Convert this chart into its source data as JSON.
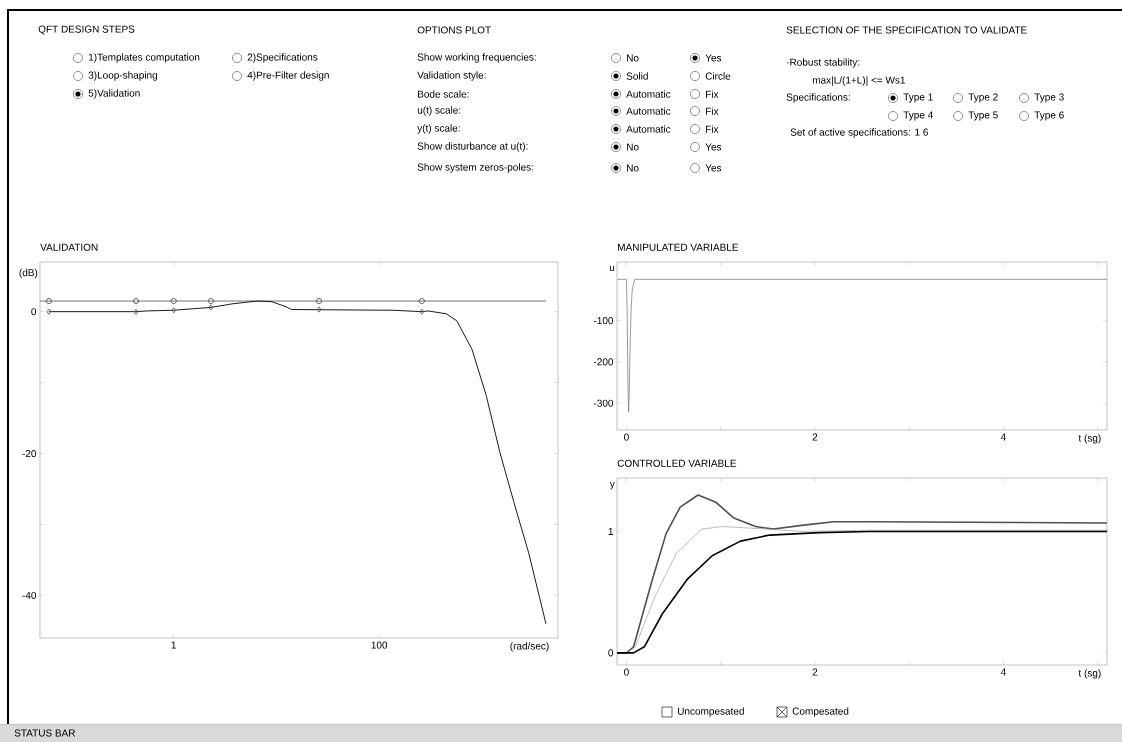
{
  "chart_data": [
    {
      "type": "other",
      "annotations": [
        "QFT DESIGN STEPS",
        "1)Templates computation",
        "2)Specifications",
        "3)Loop-shaping",
        "4)Pre-Filter design",
        "5)Validation",
        "OPTIONS PLOT",
        "Show working frequencies:",
        "Validation style:",
        "Bode scale:",
        "u(t) scale:",
        "y(t) scale:",
        "Show disturbance at u(t):",
        "Show system zeros-poles:",
        "No",
        "Yes",
        "Solid",
        "Circle",
        "Automatic",
        "Fix",
        "Automatic",
        "Fix",
        "Automatic",
        "Fix",
        "No",
        "Yes",
        "No",
        "Yes",
        "SELECTION OF THE SPECIFICATION TO VALIDATE",
        "·Robust stability:",
        "max|L/(1+L)| <= Ws1",
        "Specifications:",
        "Type 1",
        "Type 2",
        "Type 3",
        "Type 4",
        "Type 5",
        "Type 6",
        "Set of active specifications: 1 6",
        "Uncompesated",
        "Compesated",
        "STATUS BAR"
      ]
    },
    {
      "type": "line",
      "title": "VALIDATION",
      "xlabel": "(rad/sec)",
      "ylabel": "(dB)",
      "log": "x",
      "xlim": [
        0.05,
        5500
      ],
      "ylim": [
        -46,
        7
      ],
      "xticks": [
        1,
        100
      ],
      "yticks": [
        0,
        {
          "value": -10,
          "label": null
        },
        -20,
        {
          "value": -30,
          "label": null
        },
        -40
      ],
      "series": [
        {
          "type": "line",
          "color": "#505050",
          "x": [
            0.05,
            4200
          ],
          "values": [
            1.5,
            1.5
          ]
        },
        {
          "type": "scatter",
          "marker": "circle",
          "color": "#505050",
          "x": [
            0.061,
            0.43,
            1.0,
            2.3,
            26,
            260
          ],
          "values": [
            1.5,
            1.5,
            1.5,
            1.5,
            1.5,
            1.5
          ]
        },
        {
          "type": "line",
          "color": "#000000",
          "x": [
            0.061,
            0.43,
            0.55,
            1.0,
            2.3,
            3.7,
            6.5,
            9.0,
            12.4,
            14,
            136,
            260,
            300,
            450,
            570,
            800,
            1100,
            1500,
            2050,
            2850,
            4200
          ],
          "values": [
            0,
            0,
            0.1,
            0.2,
            0.6,
            1.1,
            1.5,
            1.4,
            0.7,
            0.3,
            0.2,
            0,
            0.1,
            -0.3,
            -1.3,
            -5.3,
            -11.8,
            -19.9,
            -26.9,
            -34,
            -44
          ]
        },
        {
          "type": "scatter",
          "marker": "diamond",
          "color": "#606060",
          "x": [
            0.061,
            0.43,
            1.0,
            2.3,
            26,
            260
          ],
          "values": [
            0,
            0,
            0.2,
            0.6,
            0.3,
            0
          ]
        }
      ]
    },
    {
      "type": "line",
      "title": "MANIPULATED VARIABLE",
      "xlabel": "t (sg)",
      "ylabel": "u",
      "xlim": [
        -0.1,
        5.1
      ],
      "ylim": [
        -365,
        42
      ],
      "xticks": [
        0,
        {
          "value": 1,
          "label": null
        },
        2,
        {
          "value": 3,
          "label": null
        },
        4,
        {
          "value": 5,
          "label": null
        }
      ],
      "yticks": [
        -100,
        -200,
        -300
      ],
      "series": [
        {
          "color": "#808080",
          "x": [
            -0.1,
            0,
            0.008,
            0.015,
            0.023,
            0.03,
            0.038,
            0.049,
            0.061,
            0.087,
            5.1
          ],
          "values": [
            0,
            0,
            -78,
            -241,
            -322,
            -267,
            -172,
            -78,
            -26,
            0,
            0
          ]
        }
      ]
    },
    {
      "type": "line",
      "title": "CONTROLLED VARIABLE",
      "xlabel": "t (sg)",
      "ylabel": "y",
      "xlim": [
        -0.1,
        5.1
      ],
      "ylim": [
        -0.1,
        1.44
      ],
      "xticks": [
        0,
        {
          "value": 1,
          "label": null
        },
        2,
        {
          "value": 3,
          "label": null
        },
        4,
        {
          "value": 5,
          "label": null
        }
      ],
      "yticks": [
        0,
        1
      ],
      "series": [
        {
          "color": "#505050",
          "x": [
            -0.1,
            0,
            0.076,
            0.266,
            0.42,
            0.57,
            0.76,
            0.95,
            1.14,
            1.37,
            1.56,
            1.86,
            2.2,
            2.58,
            5.1
          ],
          "values": [
            0,
            0,
            0.05,
            0.58,
            0.98,
            1.2,
            1.3,
            1.24,
            1.11,
            1.04,
            1.02,
            1.05,
            1.08,
            1.08,
            1.07
          ]
        },
        {
          "color": "#909090",
          "x": [
            -0.1,
            0,
            0.095,
            0.3,
            0.53,
            0.8,
            1.02,
            1.48,
            1.86,
            2.58,
            5.1
          ],
          "values": [
            0,
            0,
            0.05,
            0.46,
            0.82,
            1.02,
            1.04,
            1.02,
            1.0,
            1.01,
            1.01
          ]
        },
        {
          "color": "#000000",
          "x": [
            -0.1,
            0,
            0.076,
            0.19,
            0.38,
            0.65,
            0.91,
            1.21,
            1.52,
            2.05,
            2.58,
            5.1
          ],
          "values": [
            0,
            0,
            0,
            0.05,
            0.32,
            0.61,
            0.8,
            0.92,
            0.97,
            0.99,
            1.0,
            1.0
          ]
        }
      ]
    }
  ]
}
